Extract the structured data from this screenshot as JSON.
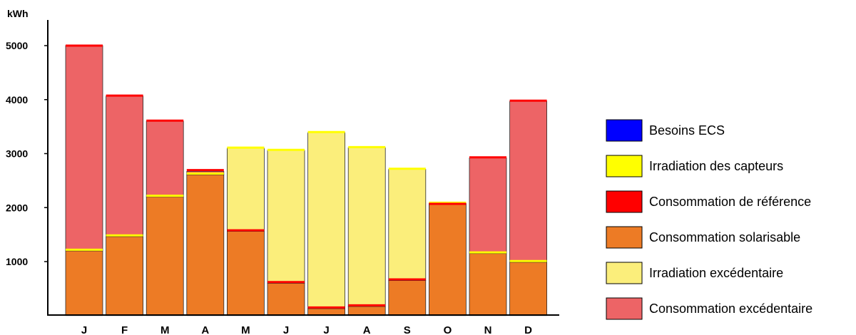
{
  "chart_data": {
    "type": "bar",
    "stacked": true,
    "ylabel": "kWh",
    "categories": [
      "J",
      "F",
      "M",
      "A",
      "M",
      "J",
      "J",
      "A",
      "S",
      "O",
      "N",
      "D"
    ],
    "yticks": [
      1000,
      2000,
      3000,
      4000,
      5000
    ],
    "ylim": [
      0,
      5350
    ],
    "series": [
      {
        "name": "Consommation solarisable",
        "color": "#ed7b25",
        "values": [
          1200,
          1465,
          2200,
          2610,
          1560,
          600,
          130,
          170,
          650,
          2060,
          1150,
          990
        ]
      },
      {
        "name": "Irradiation excédentaire",
        "color": "#fbee7b",
        "values": [
          0,
          0,
          0,
          0,
          1540,
          2460,
          3260,
          2940,
          2060,
          20,
          0,
          0
        ]
      },
      {
        "name": "Consommation excédentaire",
        "color": "#ed6466",
        "values": [
          3800,
          2600,
          1400,
          60,
          0,
          0,
          0,
          0,
          0,
          0,
          1770,
          2980
        ]
      }
    ],
    "markers": {
      "Irradiation des capteurs": [
        1220,
        1485,
        2220,
        2630,
        3110,
        3070,
        3400,
        3120,
        2720,
        2090,
        1170,
        1010
      ],
      "Consommation de référence": [
        5000,
        4075,
        3610,
        2695,
        1580,
        620,
        150,
        190,
        670,
        2070,
        2930,
        3980
      ]
    },
    "legend": {
      "placement": "right",
      "items": [
        {
          "label": "Besoins ECS",
          "color": "#0000ff"
        },
        {
          "label": "Irradiation des capteurs",
          "color": "#ffff00"
        },
        {
          "label": "Consommation de référence",
          "color": "#ff0000"
        },
        {
          "label": "Consommation solarisable",
          "color": "#ed7b25"
        },
        {
          "label": "Irradiation excédentaire",
          "color": "#fbee7b"
        },
        {
          "label": "Consommation excédentaire",
          "color": "#ed6466"
        }
      ]
    },
    "grid": false
  }
}
